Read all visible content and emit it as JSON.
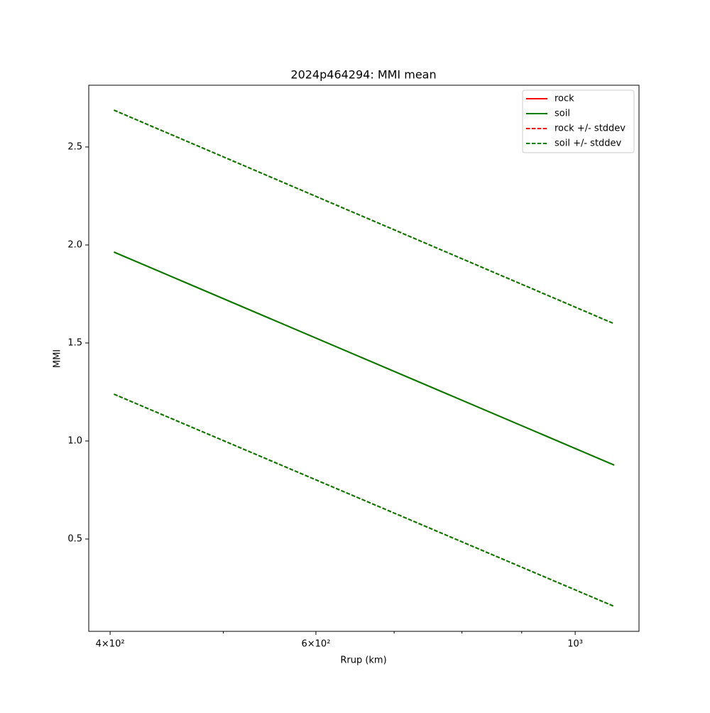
{
  "chart_data": {
    "type": "line",
    "title": "2024p464294: MMI mean",
    "x_label": "Rrup (km)",
    "y_label": "MMI",
    "x_scale": "log",
    "x": [
      403,
      1080
    ],
    "series": [
      {
        "name": "rock",
        "color": "red",
        "style": "solid",
        "values": [
          1.964,
          0.877
        ]
      },
      {
        "name": "soil",
        "color": "green",
        "style": "solid",
        "values": [
          1.964,
          0.877
        ]
      },
      {
        "name": "rock +/- stddev",
        "color": "red",
        "style": "dashed",
        "upper": [
          2.688,
          1.598
        ],
        "lower": [
          1.239,
          0.156
        ]
      },
      {
        "name": "soil +/- stddev",
        "color": "green",
        "style": "dashed",
        "upper": [
          2.688,
          1.598
        ],
        "lower": [
          1.239,
          0.156
        ]
      }
    ],
    "xlim": [
      383.5,
      1134
    ],
    "ylim": [
      0.029,
      2.815
    ],
    "xticks": [
      {
        "value": 400,
        "label": "4×10²"
      },
      {
        "value": 600,
        "label": "6×10²"
      },
      {
        "value": 1000,
        "label": "10³"
      }
    ],
    "xminorticks": [
      500,
      700,
      800,
      900
    ],
    "yticks": [
      0.5,
      1.0,
      1.5,
      2.0,
      2.5
    ],
    "legend": "upper right"
  }
}
